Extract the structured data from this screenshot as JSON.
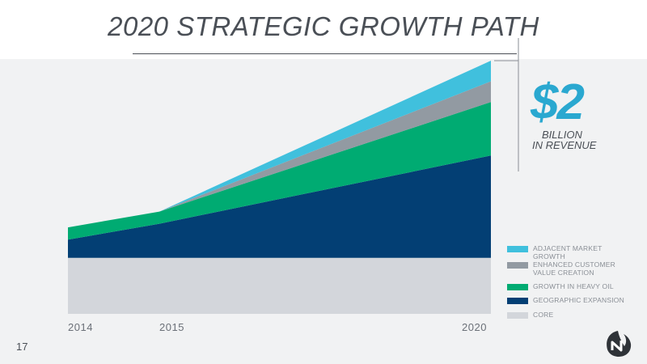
{
  "slide": {
    "title": "2020 STRATEGIC GROWTH PATH",
    "page_number": "17"
  },
  "callout": {
    "amount": "$2",
    "line1": "BILLION",
    "line2": "IN REVENUE"
  },
  "colors": {
    "core": "#d3d6db",
    "geographic": "#033f74",
    "heavy_oil": "#00ab72",
    "enhanced": "#929aa2",
    "adjacent": "#40c0dd",
    "band": "#f1f2f3",
    "accent": "#2aa8d0"
  },
  "chart_data": {
    "type": "area",
    "stacked": true,
    "x": [
      "2014",
      "2015",
      "2020"
    ],
    "ylim": [
      0,
      2
    ],
    "series": [
      {
        "name": "CORE",
        "values": [
          0.46,
          0.46,
          0.46
        ]
      },
      {
        "name": "GEOGRAPHIC EXPANSION",
        "values": [
          0.15,
          0.28,
          0.84
        ]
      },
      {
        "name": "GROWTH IN HEAVY OIL",
        "values": [
          0.1,
          0.1,
          0.44
        ]
      },
      {
        "name": "ENHANCED CUSTOMER VALUE CREATION",
        "values": [
          0.0,
          0.0,
          0.17
        ]
      },
      {
        "name": "ADJACENT MARKET GROWTH",
        "values": [
          0.0,
          0.0,
          0.17
        ]
      }
    ],
    "legend_order": [
      "ADJACENT MARKET GROWTH",
      "ENHANCED CUSTOMER VALUE CREATION",
      "GROWTH IN HEAVY OIL",
      "GEOGRAPHIC EXPANSION",
      "CORE"
    ],
    "legend_position": "bottom-right"
  }
}
